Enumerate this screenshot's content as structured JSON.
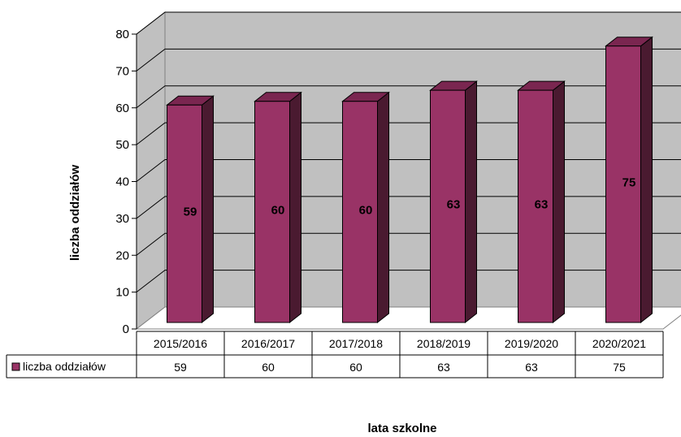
{
  "chart_data": {
    "type": "bar",
    "title": "",
    "xlabel": "lata szkolne",
    "ylabel": "liczba oddziałów",
    "categories": [
      "2015/2016",
      "2016/2017",
      "2017/2018",
      "2018/2019",
      "2019/2020",
      "2020/2021"
    ],
    "series": [
      {
        "name": "liczba oddziałów",
        "values": [
          59,
          60,
          60,
          63,
          63,
          75
        ]
      }
    ],
    "yticks": [
      "0",
      "10",
      "20",
      "30",
      "40",
      "50",
      "60",
      "70",
      "80"
    ],
    "ylim": [
      0,
      80
    ],
    "grid": true,
    "legend": "data-table-left",
    "colors": {
      "bar_front": "#993366",
      "bar_side": "#4a1a30",
      "bar_top": "#7a2650",
      "wall": "#c0c0c0",
      "floor": "#ffffff"
    }
  }
}
